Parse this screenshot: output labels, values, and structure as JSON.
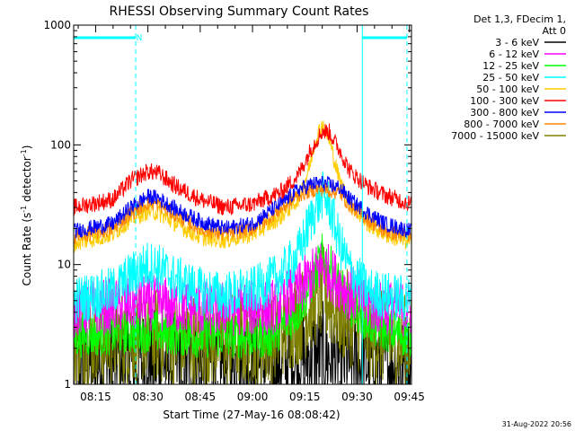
{
  "chart_data": {
    "type": "line",
    "title": "RHESSI Observing Summary Count Rates",
    "xlabel": "Start Time (27-May-16 08:08:42)",
    "ylabel_parts": [
      "Count Rate (s",
      "-1",
      " detector",
      "-1",
      ")"
    ],
    "y_scale": "log",
    "ylim": [
      1,
      1000
    ],
    "xlim_minutes": [
      488.7,
      585.6
    ],
    "x_ticks": [
      {
        "value": 495,
        "label": "08:15"
      },
      {
        "value": 510,
        "label": "08:30"
      },
      {
        "value": 525,
        "label": "08:45"
      },
      {
        "value": 540,
        "label": "09:00"
      },
      {
        "value": 555,
        "label": "09:15"
      },
      {
        "value": 570,
        "label": "09:30"
      },
      {
        "value": 585,
        "label": "09:45"
      }
    ],
    "y_ticks": [
      {
        "value": 1,
        "label": "1"
      },
      {
        "value": 10,
        "label": "10"
      },
      {
        "value": 100,
        "label": "100"
      },
      {
        "value": 1000,
        "label": "1000"
      }
    ],
    "legend": {
      "placement": "right",
      "header": [
        "Det 1,3, FDecim 1,",
        "Att 0"
      ],
      "entries": [
        {
          "label": "3 - 6 keV",
          "color": "#000000"
        },
        {
          "label": "6 - 12 keV",
          "color": "#ff00ff"
        },
        {
          "label": "12 - 25 keV",
          "color": "#00ff00"
        },
        {
          "label": "25 - 50 keV",
          "color": "#00ffff"
        },
        {
          "label": "50 - 100 keV",
          "color": "#ffcc00"
        },
        {
          "label": "100 - 300 keV",
          "color": "#ff0000"
        },
        {
          "label": "300 - 800 keV",
          "color": "#0000ff"
        },
        {
          "label": "800 - 7000 keV",
          "color": "#ff8800"
        },
        {
          "label": "7000 - 15000 keV",
          "color": "#808000"
        }
      ]
    },
    "series": [
      {
        "name": "100 - 300 keV",
        "color": "#ff0000",
        "noise": 0.1,
        "points": [
          [
            488.7,
            30
          ],
          [
            500,
            35
          ],
          [
            505,
            50
          ],
          [
            510,
            60
          ],
          [
            513,
            58
          ],
          [
            518,
            45
          ],
          [
            525,
            35
          ],
          [
            532,
            30
          ],
          [
            540,
            32
          ],
          [
            548,
            40
          ],
          [
            553,
            55
          ],
          [
            557,
            95
          ],
          [
            560,
            130
          ],
          [
            562,
            128
          ],
          [
            565,
            90
          ],
          [
            568,
            60
          ],
          [
            573,
            45
          ],
          [
            578,
            38
          ],
          [
            585.6,
            32
          ]
        ]
      },
      {
        "name": "300 - 800 keV",
        "color": "#0000ff",
        "noise": 0.09,
        "points": [
          [
            488.7,
            19
          ],
          [
            500,
            22
          ],
          [
            505,
            30
          ],
          [
            510,
            37
          ],
          [
            513,
            36
          ],
          [
            518,
            29
          ],
          [
            525,
            23
          ],
          [
            532,
            20
          ],
          [
            540,
            22
          ],
          [
            548,
            32
          ],
          [
            553,
            42
          ],
          [
            557,
            47
          ],
          [
            560,
            48
          ],
          [
            565,
            44
          ],
          [
            568,
            35
          ],
          [
            573,
            27
          ],
          [
            578,
            22
          ],
          [
            585.6,
            19
          ]
        ]
      },
      {
        "name": "800 - 7000 keV",
        "color": "#ff8800",
        "noise": 0.09,
        "points": [
          [
            488.7,
            17
          ],
          [
            500,
            20
          ],
          [
            505,
            27
          ],
          [
            510,
            33
          ],
          [
            513,
            32
          ],
          [
            518,
            26
          ],
          [
            525,
            20
          ],
          [
            532,
            18
          ],
          [
            540,
            20
          ],
          [
            548,
            29
          ],
          [
            553,
            38
          ],
          [
            557,
            42
          ],
          [
            560,
            43
          ],
          [
            565,
            40
          ],
          [
            568,
            31
          ],
          [
            573,
            24
          ],
          [
            578,
            19
          ],
          [
            585.6,
            17
          ]
        ]
      },
      {
        "name": "50 - 100 keV",
        "color": "#ffcc00",
        "noise": 0.1,
        "points": [
          [
            488.7,
            15
          ],
          [
            500,
            18
          ],
          [
            505,
            24
          ],
          [
            510,
            28
          ],
          [
            513,
            27
          ],
          [
            518,
            22
          ],
          [
            525,
            17
          ],
          [
            532,
            16
          ],
          [
            540,
            18
          ],
          [
            548,
            25
          ],
          [
            553,
            35
          ],
          [
            556,
            60
          ],
          [
            558,
            110
          ],
          [
            560,
            150
          ],
          [
            562,
            110
          ],
          [
            565,
            50
          ],
          [
            568,
            32
          ],
          [
            573,
            22
          ],
          [
            578,
            18
          ],
          [
            585.6,
            15
          ]
        ]
      },
      {
        "name": "25 - 50 keV",
        "color": "#00ffff",
        "noise": 0.28,
        "points": [
          [
            488.7,
            5
          ],
          [
            500,
            6
          ],
          [
            505,
            8
          ],
          [
            510,
            10
          ],
          [
            513,
            9.5
          ],
          [
            518,
            7.5
          ],
          [
            525,
            6
          ],
          [
            532,
            5.5
          ],
          [
            540,
            6
          ],
          [
            548,
            8
          ],
          [
            553,
            12
          ],
          [
            557,
            25
          ],
          [
            560,
            38
          ],
          [
            562,
            32
          ],
          [
            565,
            15
          ],
          [
            568,
            9
          ],
          [
            573,
            6
          ],
          [
            578,
            5.5
          ],
          [
            585.6,
            5
          ]
        ]
      },
      {
        "name": "6 - 12 keV",
        "color": "#ff00ff",
        "noise": 0.32,
        "points": [
          [
            488.7,
            4.2
          ],
          [
            510,
            4.8
          ],
          [
            525,
            4.3
          ],
          [
            545,
            4.3
          ],
          [
            553,
            6
          ],
          [
            557,
            8
          ],
          [
            560,
            10
          ],
          [
            563,
            8
          ],
          [
            567,
            6
          ],
          [
            575,
            4.5
          ],
          [
            585.6,
            4.2
          ]
        ]
      },
      {
        "name": "12 - 25 keV",
        "color": "#00ff00",
        "noise": 0.25,
        "points": [
          [
            488.7,
            2.5
          ],
          [
            510,
            2.8
          ],
          [
            525,
            2.5
          ],
          [
            545,
            2.5
          ],
          [
            553,
            4
          ],
          [
            557,
            7
          ],
          [
            560,
            12
          ],
          [
            563,
            9
          ],
          [
            567,
            5
          ],
          [
            575,
            3
          ],
          [
            585.6,
            2.5
          ]
        ]
      },
      {
        "name": "7000 - 15000 keV",
        "color": "#808000",
        "noise": 0.55,
        "points": [
          [
            488.7,
            2.2
          ],
          [
            510,
            2.6
          ],
          [
            525,
            2.3
          ],
          [
            545,
            2.4
          ],
          [
            555,
            4
          ],
          [
            560,
            6
          ],
          [
            565,
            4
          ],
          [
            575,
            2.5
          ],
          [
            585.6,
            2.2
          ]
        ]
      },
      {
        "name": "3 - 6 keV",
        "color": "#000000",
        "noise": 0.6,
        "points": [
          [
            488.7,
            1.5
          ],
          [
            510,
            1.6
          ],
          [
            525,
            1.5
          ],
          [
            545,
            1.5
          ],
          [
            555,
            1.7
          ],
          [
            560,
            1.8
          ],
          [
            565,
            1.6
          ],
          [
            575,
            1.5
          ],
          [
            585.6,
            1.4
          ]
        ]
      }
    ],
    "overlays": {
      "color": "#00ffff",
      "attenuator_lines_minutes": [
        488.7,
        506.5,
        571.5,
        584.3
      ],
      "attenuator_bars": [
        [
          488.7,
          506.5
        ],
        [
          571.5,
          584.3
        ]
      ],
      "label_N": "N",
      "label_N_at_minutes": 507.5
    },
    "timestamp": "31-Aug-2022 20:56"
  }
}
